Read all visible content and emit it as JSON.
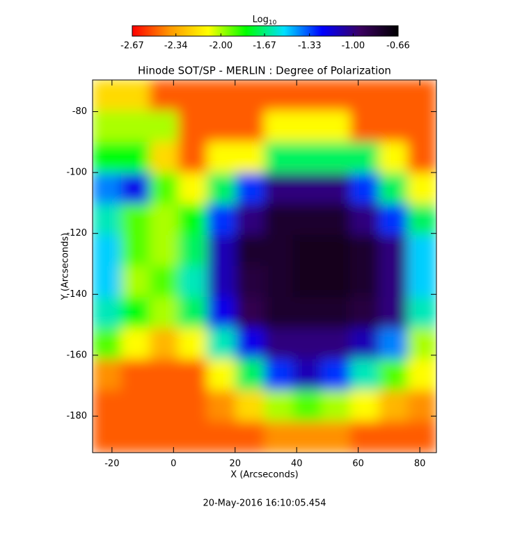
{
  "chart_data": {
    "type": "heatmap",
    "title": "Hinode SOT/SP - MERLIN : Degree of Polarization",
    "x_label": "X (Arcseconds)",
    "y_label": "Y (Arcseconds)",
    "footer": "20-May-2016 16:10:05.454",
    "colorbar_label": "Log",
    "colorbar_label_sub": "10",
    "clim": [
      -2.67,
      -0.66
    ],
    "cticks": [
      -2.67,
      -2.34,
      {
        "value": -2,
        "label": "-2.00"
      },
      -1.67,
      -1.33,
      {
        "value": -1,
        "label": "-1.00"
      },
      -0.66
    ],
    "colorscale": [
      "#ff0000",
      "#ff9900",
      "#ffff00",
      "#00ff00",
      "#00e0ff",
      "#0000ff",
      "#3a0060",
      "#000000"
    ],
    "xlim": [
      -26.3,
      85.4
    ],
    "ylim": [
      -192,
      -69.6
    ],
    "xticks": [
      -20,
      0,
      20,
      40,
      60,
      80
    ],
    "yticks": [
      -180,
      -160,
      -140,
      -120,
      -100,
      -80
    ],
    "z": [
      [
        -2.2,
        -2.2,
        -2.5,
        -2.5,
        -2.5,
        -2.5,
        -2.5,
        -2.5,
        -2.5,
        -2.5,
        -2.5,
        -2.5
      ],
      [
        -2.0,
        -2.0,
        -2.0,
        -2.5,
        -2.5,
        -2.5,
        -2.1,
        -2.1,
        -2.1,
        -2.5,
        -2.5,
        -2.5
      ],
      [
        -1.8,
        -1.8,
        -2.2,
        -2.5,
        -2.1,
        -2.1,
        -1.7,
        -1.7,
        -1.7,
        -1.7,
        -2.1,
        -2.5
      ],
      [
        -1.4,
        -1.2,
        -1.9,
        -2.1,
        -1.7,
        -1.3,
        -1.0,
        -1.0,
        -1.0,
        -1.3,
        -1.7,
        -2.1
      ],
      [
        -1.6,
        -1.9,
        -2.0,
        -1.8,
        -1.3,
        -1.0,
        -0.8,
        -0.8,
        -0.8,
        -1.0,
        -1.3,
        -1.7
      ],
      [
        -1.5,
        -1.9,
        -2.0,
        -1.7,
        -1.1,
        -0.8,
        -0.8,
        -0.75,
        -0.75,
        -0.8,
        -1.0,
        -1.5
      ],
      [
        -1.5,
        -2.0,
        -1.9,
        -1.6,
        -1.1,
        -0.85,
        -0.8,
        -0.75,
        -0.75,
        -0.8,
        -1.0,
        -1.5
      ],
      [
        -1.6,
        -1.8,
        -2.0,
        -1.7,
        -1.2,
        -0.9,
        -0.8,
        -0.8,
        -0.8,
        -0.85,
        -1.0,
        -1.6
      ],
      [
        -1.9,
        -2.1,
        -2.3,
        -2.1,
        -1.6,
        -1.2,
        -1.0,
        -1.0,
        -1.0,
        -1.1,
        -1.4,
        -2.0
      ],
      [
        -2.4,
        -2.5,
        -2.5,
        -2.5,
        -2.1,
        -1.7,
        -1.3,
        -1.1,
        -1.3,
        -1.6,
        -1.9,
        -2.1
      ],
      [
        -2.5,
        -2.5,
        -2.5,
        -2.5,
        -2.4,
        -2.2,
        -2.0,
        -1.9,
        -2.0,
        -2.1,
        -2.3,
        -2.4
      ],
      [
        -2.5,
        -2.5,
        -2.5,
        -2.5,
        -2.5,
        -2.5,
        -2.4,
        -2.4,
        -2.4,
        -2.5,
        -2.5,
        -2.5
      ]
    ]
  }
}
